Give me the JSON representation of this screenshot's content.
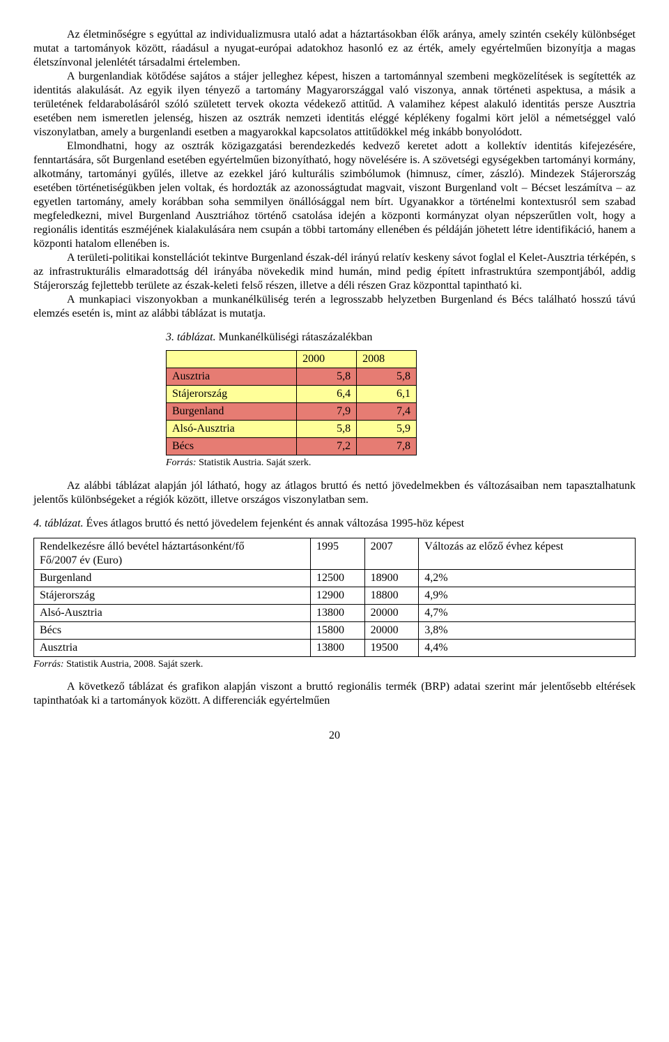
{
  "paragraphs": {
    "p1": "Az életminőségre s egyúttal az individualizmusra utaló adat a háztartásokban élők aránya, amely szintén csekély különbséget mutat a tartományok között, ráadásul a nyugat-európai adatokhoz hasonló ez az érték, amely egyértelműen bizonyítja a magas életszínvonal jelenlétét társadalmi értelemben.",
    "p2": "A burgenlandiak kötődése sajátos a stájer jelleghez képest, hiszen a tartománnyal szembeni megközelítések is segítették az identitás alakulását. Az egyik ilyen tényező a tartomány Magyarországgal való viszonya, annak történeti aspektusa, a másik a területének feldarabolásáról szóló született tervek okozta védekező attitűd. A valamihez képest alakuló identitás persze Ausztria esetében nem ismeretlen jelenség, hiszen az osztrák nemzeti identitás eléggé képlékeny fogalmi kört jelöl a németséggel való viszonylatban, amely a burgenlandi esetben a magyarokkal kapcsolatos attitűdökkel még inkább bonyolódott.",
    "p3": "Elmondhatni, hogy az osztrák közigazgatási berendezkedés kedvező keretet adott a kollektív identitás kifejezésére, fenntartására, sőt Burgenland esetében egyértelműen bizonyítható, hogy növelésére is. A szövetségi egységekben tartományi kormány, alkotmány, tartományi gyűlés, illetve az ezekkel járó kulturális szimbólumok (himnusz, címer, zászló). Mindezek Stájerország esetében történetiségükben jelen voltak, és hordozták az azonosságtudat magvait, viszont Burgenland volt – Bécset leszámítva – az egyetlen tartomány, amely korábban soha semmilyen önállósággal nem bírt. Ugyanakkor a történelmi kontextusról sem szabad megfeledkezni, mivel Burgenland Ausztriához történő csatolása idején a központi kormányzat olyan népszerűtlen volt, hogy a regionális identitás eszméjének kialakulására nem csupán a többi tartomány ellenében és példáján jöhetett létre identifikáció, hanem a központi hatalom ellenében is.",
    "p4": "A területi-politikai konstellációt tekintve Burgenland észak-dél irányú relatív keskeny sávot foglal el Kelet-Ausztria térképén, s az infrastrukturális elmaradottság dél irányába növekedik mind humán, mind pedig épített infrastruktúra szempontjából, addig Stájerország fejlettebb területe az észak-keleti felső részen, illetve a  déli részen Graz központtal tapintható ki.",
    "p5": "A munkapiaci viszonyokban a munkanélküliség terén a legrosszabb helyzetben Burgenland és Bécs található hosszú távú elemzés esetén is, mint az alábbi táblázat is mutatja.",
    "p6": "Az alábbi táblázat alapján jól látható, hogy az átlagos bruttó és nettó jövedelmekben és változásaiban nem tapasztalhatunk jelentős különbségeket a régiók között, illetve országos viszonylatban sem.",
    "p7": "A következő táblázat és grafikon alapján viszont a bruttó regionális termék (BRP) adatai szerint már jelentősebb eltérések tapinthatóak ki a tartományok között. A differenciák egyértelműen"
  },
  "table3": {
    "caption_prefix": "3. táblázat.",
    "caption_text": " Munkanélküliségi rátaszázalékban",
    "headers": {
      "col1": "2000",
      "col2": "2008"
    },
    "rows": [
      {
        "label": "Ausztria",
        "c1": "5,8",
        "c2": "5,8",
        "cls": "row-red"
      },
      {
        "label": "Stájerország",
        "c1": "6,4",
        "c2": "6,1",
        "cls": "row-yellow"
      },
      {
        "label": "Burgenland",
        "c1": "7,9",
        "c2": "7,4",
        "cls": "row-red"
      },
      {
        "label": "Alsó-Ausztria",
        "c1": "5,8",
        "c2": "5,9",
        "cls": "row-yellow"
      },
      {
        "label": "Bécs",
        "c1": "7,2",
        "c2": "7,8",
        "cls": "row-red"
      }
    ],
    "source_prefix": "Forrás:",
    "source_text": " Statistik Austria. Saját szerk."
  },
  "table4": {
    "caption_prefix": "4. táblázat.",
    "caption_text": " Éves átlagos bruttó és nettó jövedelem fejenként és annak változása 1995-höz képest",
    "header": {
      "c0": "Rendelkezésre álló bevétel háztartásonként/fő\nFő/2007 év (Euro)",
      "c1": "1995",
      "c2": "2007",
      "c3": "Változás az előző évhez képest"
    },
    "rows": [
      {
        "label": "Burgenland",
        "c1": "12500",
        "c2": "18900",
        "c3": "4,2%"
      },
      {
        "label": "Stájerország",
        "c1": "12900",
        "c2": "18800",
        "c3": "4,9%"
      },
      {
        "label": "Alsó-Ausztria",
        "c1": "13800",
        "c2": "20000",
        "c3": "4,7%"
      },
      {
        "label": "Bécs",
        "c1": "15800",
        "c2": "20000",
        "c3": "3,8%"
      },
      {
        "label": "Ausztria",
        "c1": "13800",
        "c2": "19500",
        "c3": "4,4%"
      }
    ],
    "source_prefix": "Forrás:",
    "source_text": " Statistik Austria, 2008. Saját szerk."
  },
  "page_number": "20"
}
